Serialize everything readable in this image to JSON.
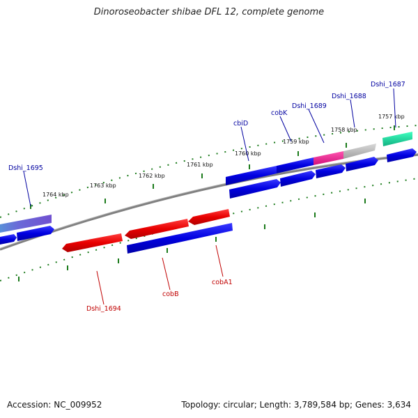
{
  "title": "Dinoroseobacter shibae DFL 12, complete genome",
  "footer": {
    "accession": "Accession: NC_009952",
    "stats": "Topology: circular; Length: 3,789,584 bp; Genes: 3,634"
  },
  "colors": {
    "backbone": "#808080",
    "tick": "#1a7a1a",
    "forward_gene": "#0000e0",
    "reverse_gene": "#e00000",
    "label_blue": "#0000a0",
    "label_red": "#c00000"
  },
  "axis_ticks": [
    "1757 kbp",
    "1758 kbp",
    "1759 kbp",
    "1760 kbp",
    "1761 kbp",
    "1762 kbp",
    "1763 kbp",
    "1764 kbp"
  ],
  "labels_top": [
    "Dshi_1687",
    "Dshi_1688",
    "Dshi_1689",
    "cobK",
    "cbiD",
    "Dshi_1695"
  ],
  "labels_bottom": [
    "Dshi_1694",
    "cobB",
    "cobA1"
  ]
}
